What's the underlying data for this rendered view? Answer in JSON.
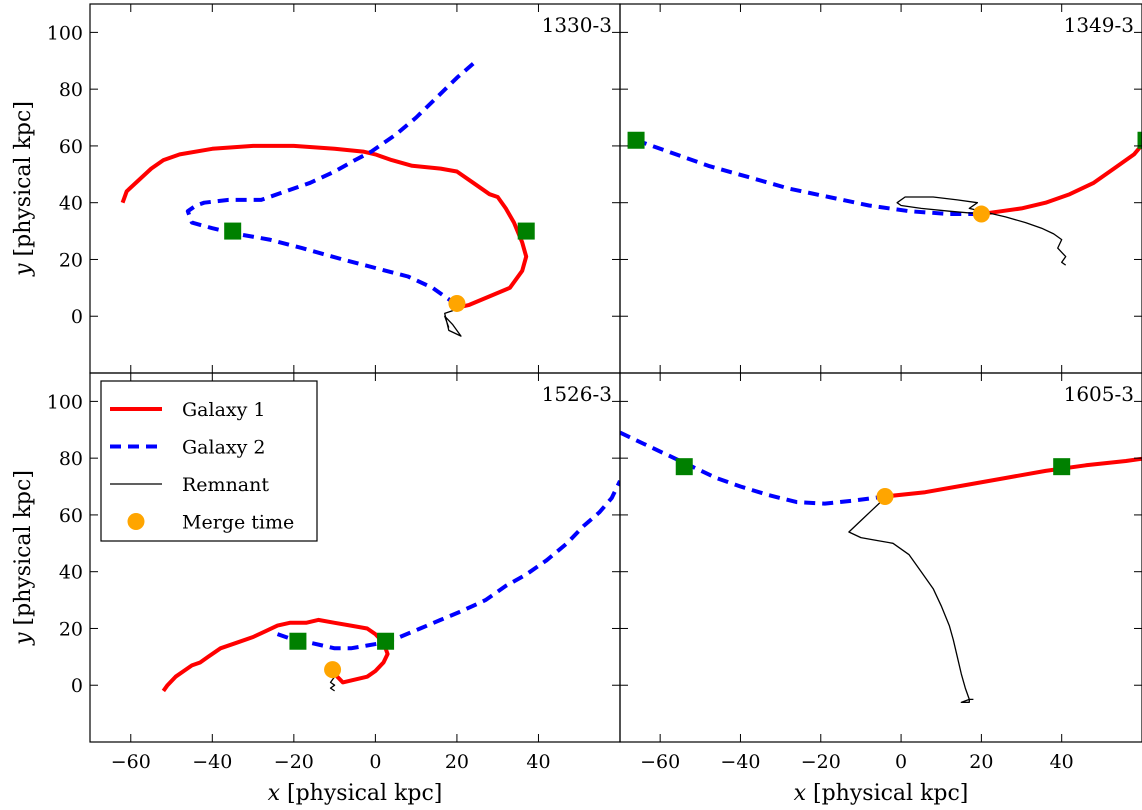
{
  "chart_data": [
    {
      "type": "line",
      "panel_label": "1330-3",
      "xlim": [
        -70,
        60
      ],
      "ylim": [
        -20,
        110
      ],
      "series": [
        {
          "name": "Galaxy 1",
          "color": "#ff0000",
          "style": "solid",
          "x": [
            20,
            23,
            28,
            33,
            36,
            37,
            36,
            34,
            32,
            30,
            28,
            24,
            20,
            16,
            9,
            4,
            0,
            -3,
            -10,
            -20,
            -30,
            -40,
            -48,
            -52,
            -55,
            -58,
            -61,
            -62
          ],
          "y": [
            3,
            4,
            7,
            10,
            16,
            21,
            26,
            33,
            38,
            42,
            43,
            47,
            51,
            52,
            53,
            55,
            57,
            58,
            59,
            60,
            60,
            59,
            57,
            55,
            52,
            48,
            44,
            40
          ]
        },
        {
          "name": "Galaxy 2",
          "color": "#0000ff",
          "style": "dashed",
          "x": [
            24,
            20,
            15,
            10,
            5,
            2,
            -1,
            -5,
            -10,
            -16,
            -22,
            -28,
            -36,
            -42,
            -44,
            -46,
            -45,
            -40,
            -34,
            -26,
            -18,
            -8,
            0,
            8,
            14,
            17,
            20
          ],
          "y": [
            89,
            84,
            77,
            70,
            64,
            61,
            58,
            55,
            51,
            47,
            44,
            41,
            41,
            40,
            39,
            37,
            33,
            31,
            29,
            27,
            24,
            20,
            17,
            14,
            10,
            7,
            4
          ]
        },
        {
          "name": "Remnant",
          "color": "#000000",
          "style": "thin",
          "x": [
            20,
            19,
            17,
            18,
            21,
            19,
            17,
            18
          ],
          "y": [
            4,
            2,
            1,
            -5,
            -7,
            -3,
            0,
            -4
          ]
        }
      ],
      "markers": {
        "merge": [
          {
            "x": 20,
            "y": 4.5
          }
        ],
        "start": [
          {
            "x": -35,
            "y": 30
          },
          {
            "x": 37,
            "y": 30
          }
        ]
      }
    },
    {
      "type": "line",
      "panel_label": "1349-3",
      "xlim": [
        -70,
        60
      ],
      "ylim": [
        -20,
        110
      ],
      "series": [
        {
          "name": "Galaxy 1",
          "color": "#ff0000",
          "style": "solid",
          "x": [
            20,
            25,
            30,
            36,
            42,
            48,
            53,
            58,
            61
          ],
          "y": [
            36,
            37,
            38,
            40,
            43,
            47,
            52,
            57,
            62
          ]
        },
        {
          "name": "Galaxy 2",
          "color": "#0000ff",
          "style": "dashed",
          "x": [
            -66,
            -58,
            -48,
            -38,
            -28,
            -18,
            -8,
            2,
            12,
            20
          ],
          "y": [
            62,
            58,
            53,
            49,
            45,
            42,
            39,
            37,
            36,
            36
          ]
        },
        {
          "name": "Remnant",
          "color": "#000000",
          "style": "thin",
          "x": [
            20,
            12,
            5,
            0,
            -1,
            1,
            8,
            14,
            19,
            17,
            20,
            26,
            31,
            35,
            38,
            40,
            39,
            41,
            40,
            41
          ],
          "y": [
            36,
            37,
            38,
            39,
            40,
            42,
            42,
            41,
            40,
            38,
            37,
            35,
            33,
            31,
            29,
            27,
            24,
            21,
            19,
            18
          ]
        }
      ],
      "markers": {
        "merge": [
          {
            "x": 20,
            "y": 36
          }
        ],
        "start": [
          {
            "x": -66,
            "y": 62
          },
          {
            "x": 61,
            "y": 62
          }
        ]
      }
    },
    {
      "type": "line",
      "panel_label": "1526-3",
      "xlim": [
        -70,
        60
      ],
      "ylim": [
        -20,
        110
      ],
      "series": [
        {
          "name": "Galaxy 1",
          "color": "#ff0000",
          "style": "solid",
          "x": [
            -52,
            -51,
            -49,
            -47,
            -45,
            -43,
            -41,
            -38,
            -34,
            -30,
            -27,
            -24,
            -21,
            -17,
            -14,
            -10,
            -6,
            -2,
            0,
            2,
            3,
            2,
            0,
            -2,
            -5,
            -8,
            -10
          ],
          "y": [
            -2,
            0,
            3,
            5,
            7,
            8,
            10,
            13,
            15,
            17,
            19,
            21,
            22,
            22,
            23,
            22,
            21,
            20,
            18,
            15,
            11,
            8,
            5,
            3,
            2,
            1,
            4
          ]
        },
        {
          "name": "Galaxy 2",
          "color": "#0000ff",
          "style": "dashed",
          "x": [
            -24,
            -20,
            -16,
            -13,
            -10,
            -6,
            -2,
            2,
            6,
            11,
            16,
            21,
            27,
            32,
            37,
            42,
            47,
            51,
            55,
            58,
            60
          ],
          "y": [
            18,
            16,
            15,
            14,
            13,
            13,
            14,
            15,
            17,
            20,
            23,
            26,
            30,
            35,
            39,
            44,
            50,
            56,
            61,
            66,
            72
          ]
        },
        {
          "name": "Remnant",
          "color": "#000000",
          "style": "thin",
          "x": [
            -10,
            -10,
            -11,
            -10,
            -11,
            -10
          ],
          "y": [
            5,
            3,
            1,
            0,
            -1,
            -2
          ]
        }
      ],
      "markers": {
        "merge": [
          {
            "x": -10.5,
            "y": 5.5
          }
        ],
        "start": [
          {
            "x": -19,
            "y": 15.5
          },
          {
            "x": 2.5,
            "y": 15.5
          }
        ]
      }
    },
    {
      "type": "line",
      "panel_label": "1605-3",
      "xlim": [
        -70,
        60
      ],
      "ylim": [
        -20,
        110
      ],
      "series": [
        {
          "name": "Galaxy 1",
          "color": "#ff0000",
          "style": "solid",
          "x": [
            -4,
            6,
            16,
            26,
            36,
            46,
            56,
            61
          ],
          "y": [
            66.5,
            68,
            70.5,
            73,
            75.5,
            77.5,
            79,
            80
          ]
        },
        {
          "name": "Galaxy 2",
          "color": "#0000ff",
          "style": "dashed",
          "x": [
            -70,
            -64,
            -58,
            -52,
            -46,
            -40,
            -33,
            -26,
            -19,
            -12,
            -4
          ],
          "y": [
            89,
            85,
            81,
            77,
            73,
            70,
            67,
            64.5,
            64,
            65,
            66.5
          ]
        },
        {
          "name": "Remnant",
          "color": "#000000",
          "style": "thin",
          "x": [
            -4,
            -7,
            -10,
            -13,
            -10,
            -6,
            -2,
            2,
            5,
            8,
            10,
            12,
            13,
            14,
            15,
            16,
            17,
            15,
            17,
            17,
            18
          ],
          "y": [
            66,
            62,
            58,
            54,
            52,
            51,
            50,
            46,
            40,
            34,
            28,
            21,
            16,
            10,
            4,
            -1,
            -5,
            -6,
            -6,
            -5,
            -5
          ]
        }
      ],
      "markers": {
        "merge": [
          {
            "x": -4,
            "y": 66.5
          }
        ],
        "start": [
          {
            "x": -54,
            "y": 77
          },
          {
            "x": 40,
            "y": 77
          }
        ]
      }
    }
  ],
  "axes": {
    "x_ticks": [
      -60,
      -40,
      -20,
      0,
      20,
      40
    ],
    "y_ticks": [
      0,
      20,
      40,
      60,
      80,
      100
    ],
    "xlabel_var": "x",
    "xlabel_unit": " [physical kpc]",
    "ylabel_var": "y",
    "ylabel_unit": " [physical kpc]"
  },
  "legend": {
    "position": "top-left of bottom-left panel",
    "items": [
      {
        "label": "Galaxy 1",
        "kind": "solid",
        "color": "#ff0000"
      },
      {
        "label": "Galaxy 2",
        "kind": "dashed",
        "color": "#0000ff"
      },
      {
        "label": "Remnant",
        "kind": "thin",
        "color": "#000000"
      },
      {
        "label": "Merge time",
        "kind": "dot",
        "color": "#ffa500"
      }
    ]
  },
  "colors": {
    "galaxy1": "#ff0000",
    "galaxy2": "#0000ff",
    "remnant": "#000000",
    "merge_marker": "#ffa500",
    "start_marker": "#008000"
  }
}
